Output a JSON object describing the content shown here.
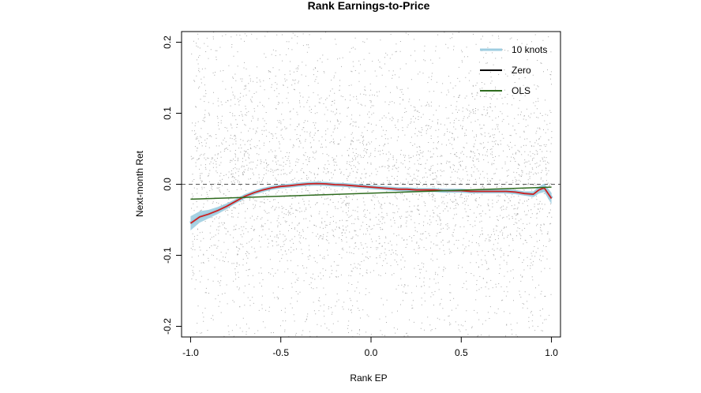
{
  "chart_data": {
    "type": "scatter",
    "title": "Rank Earnings-to-Price",
    "xlabel": "Rank EP",
    "ylabel": "Next-month Ret",
    "xlim": [
      -1.05,
      1.05
    ],
    "ylim": [
      -0.215,
      0.215
    ],
    "xticks": [
      -1.0,
      -0.5,
      0.0,
      0.5,
      1.0
    ],
    "xtick_labels": [
      "-1.0",
      "-0.5",
      "0.0",
      "0.5",
      "1.0"
    ],
    "yticks": [
      -0.2,
      -0.1,
      0.0,
      0.1,
      0.2
    ],
    "ytick_labels": [
      "-0.2",
      "-0.1",
      "0.0",
      "0.1",
      "0.2"
    ],
    "grid": false,
    "legend_position": "top-right",
    "reference_line": {
      "y": 0.0,
      "style": "dashed",
      "color": "#555555"
    },
    "scatter": {
      "description_color": "#8c8c8c",
      "x_range": [
        -1.0,
        1.0
      ],
      "y_range": [
        -0.215,
        0.215
      ]
    },
    "series": [
      {
        "name": "10 knots",
        "color": "#9ecde0",
        "band": true,
        "x": [
          -1.0,
          -0.95,
          -0.9,
          -0.85,
          -0.8,
          -0.75,
          -0.7,
          -0.65,
          -0.6,
          -0.55,
          -0.5,
          -0.45,
          -0.4,
          -0.35,
          -0.3,
          -0.25,
          -0.2,
          -0.15,
          -0.1,
          -0.05,
          0.0,
          0.05,
          0.1,
          0.15,
          0.2,
          0.25,
          0.3,
          0.35,
          0.4,
          0.45,
          0.5,
          0.55,
          0.6,
          0.65,
          0.7,
          0.75,
          0.8,
          0.85,
          0.9,
          0.93,
          0.96,
          1.0
        ],
        "values": [
          -0.055,
          -0.046,
          -0.042,
          -0.037,
          -0.031,
          -0.024,
          -0.017,
          -0.012,
          -0.008,
          -0.005,
          -0.003,
          -0.002,
          -0.0005,
          0.0005,
          0.001,
          0.0005,
          -0.0005,
          -0.001,
          -0.002,
          -0.003,
          -0.004,
          -0.005,
          -0.006,
          -0.007,
          -0.007,
          -0.008,
          -0.008,
          -0.008,
          -0.009,
          -0.009,
          -0.009,
          -0.01,
          -0.01,
          -0.01,
          -0.01,
          -0.01,
          -0.011,
          -0.013,
          -0.014,
          -0.008,
          -0.005,
          -0.02
        ],
        "band_halfwidth": [
          0.01,
          0.008,
          0.006,
          0.005,
          0.004,
          0.003,
          0.003,
          0.003,
          0.003,
          0.002,
          0.002,
          0.002,
          0.002,
          0.002,
          0.002,
          0.002,
          0.002,
          0.002,
          0.002,
          0.002,
          0.002,
          0.002,
          0.002,
          0.002,
          0.002,
          0.002,
          0.002,
          0.002,
          0.002,
          0.002,
          0.002,
          0.002,
          0.002,
          0.002,
          0.002,
          0.003,
          0.003,
          0.003,
          0.004,
          0.005,
          0.006,
          0.008
        ]
      },
      {
        "name": "Zero",
        "color": "#000000",
        "x": [
          -1.0,
          1.0
        ],
        "values": [
          0.0,
          0.0
        ]
      },
      {
        "name": "OLS",
        "color": "#2e6b1e",
        "x": [
          -1.0,
          1.0
        ],
        "values": [
          -0.021,
          -0.004
        ]
      }
    ],
    "fit_line_color": "#cc1f1f"
  }
}
